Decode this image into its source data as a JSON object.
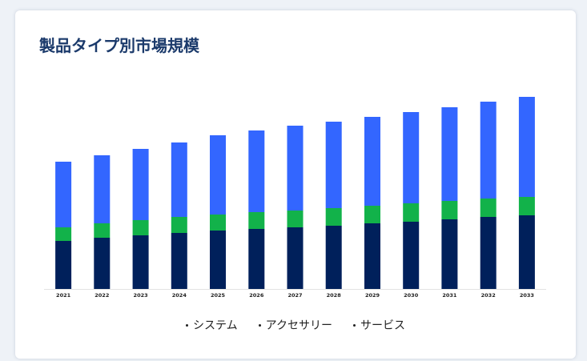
{
  "page": {
    "title": "製品タイプ別市場規模"
  },
  "chart_data": {
    "type": "bar",
    "stacked": true,
    "categories": [
      "2021",
      "2022",
      "2023",
      "2024",
      "2025",
      "2026",
      "2027",
      "2028",
      "2029",
      "2030",
      "2031",
      "2032",
      "2033"
    ],
    "series": [
      {
        "name": "システム",
        "color": "#00205b",
        "values": [
          60,
          64,
          67,
          70,
          73,
          75,
          77,
          79,
          82,
          84,
          87,
          90,
          92
        ]
      },
      {
        "name": "アクセサリー",
        "color": "#12b24a",
        "values": [
          17,
          18,
          19,
          20,
          20,
          21,
          21,
          22,
          22,
          23,
          23,
          23,
          23
        ]
      },
      {
        "name": "サービス",
        "color": "#3366ff",
        "values": [
          82,
          85,
          89,
          93,
          99,
          102,
          106,
          108,
          111,
          114,
          117,
          121,
          125
        ]
      }
    ],
    "title": "製品タイプ別市場規模",
    "xlabel": "",
    "ylabel": "",
    "ylim": [
      0,
      250
    ],
    "grid": false,
    "legend_position": "bottom-center"
  }
}
